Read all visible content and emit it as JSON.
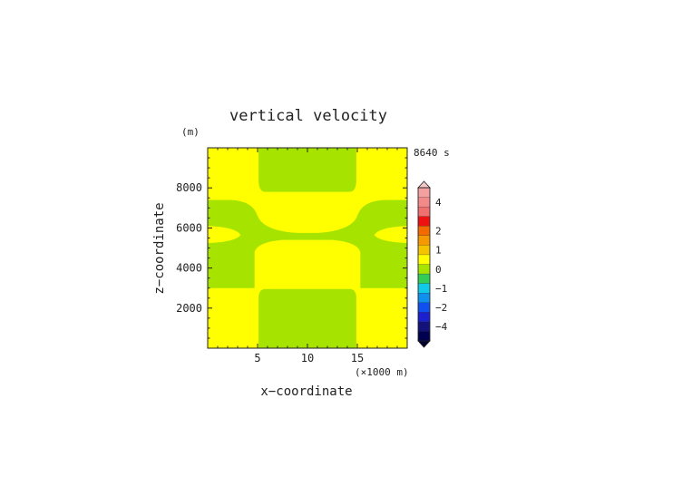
{
  "chart_data": {
    "type": "heatmap",
    "title": "vertical velocity",
    "xlabel": "x−coordinate",
    "ylabel": "z−coordinate",
    "x_unit": "(×1000 m)",
    "y_unit": "(m)",
    "time_label": "8640 s",
    "xlim": [
      0,
      20
    ],
    "ylim": [
      0,
      10000
    ],
    "x_ticks": [
      5,
      10,
      15
    ],
    "y_ticks": [
      2000,
      4000,
      6000,
      8000
    ],
    "colorbar": {
      "ticks": [
        "4",
        "2",
        "1",
        "0",
        "−1",
        "−2",
        "−4"
      ],
      "bands": [
        {
          "value": 5,
          "color": "#f3a0a0"
        },
        {
          "value": 4,
          "color": "#f38a8a"
        },
        {
          "value": 3,
          "color": "#f07070"
        },
        {
          "value": 2.5,
          "color": "#ee1111"
        },
        {
          "value": 2,
          "color": "#f26a00"
        },
        {
          "value": 1.5,
          "color": "#f49a00"
        },
        {
          "value": 1,
          "color": "#f5c400"
        },
        {
          "value": 0.5,
          "color": "#ffff00"
        },
        {
          "value": 0,
          "color": "#a6e400"
        },
        {
          "value": -0.5,
          "color": "#33cc55"
        },
        {
          "value": -1,
          "color": "#10c8e8"
        },
        {
          "value": -1.5,
          "color": "#1090ee"
        },
        {
          "value": -2,
          "color": "#1050ee"
        },
        {
          "value": -3,
          "color": "#1a20cc"
        },
        {
          "value": -4,
          "color": "#12127a"
        },
        {
          "value": -5,
          "color": "#000050"
        }
      ]
    },
    "field": {
      "background_level": 0.5,
      "regions": [
        {
          "level": 0,
          "x": [
            0,
            20
          ],
          "z": [
            500,
            0
          ]
        },
        {
          "level": 0.5,
          "x": [
            0,
            20
          ],
          "z": [
            0,
            0
          ]
        }
      ]
    }
  }
}
